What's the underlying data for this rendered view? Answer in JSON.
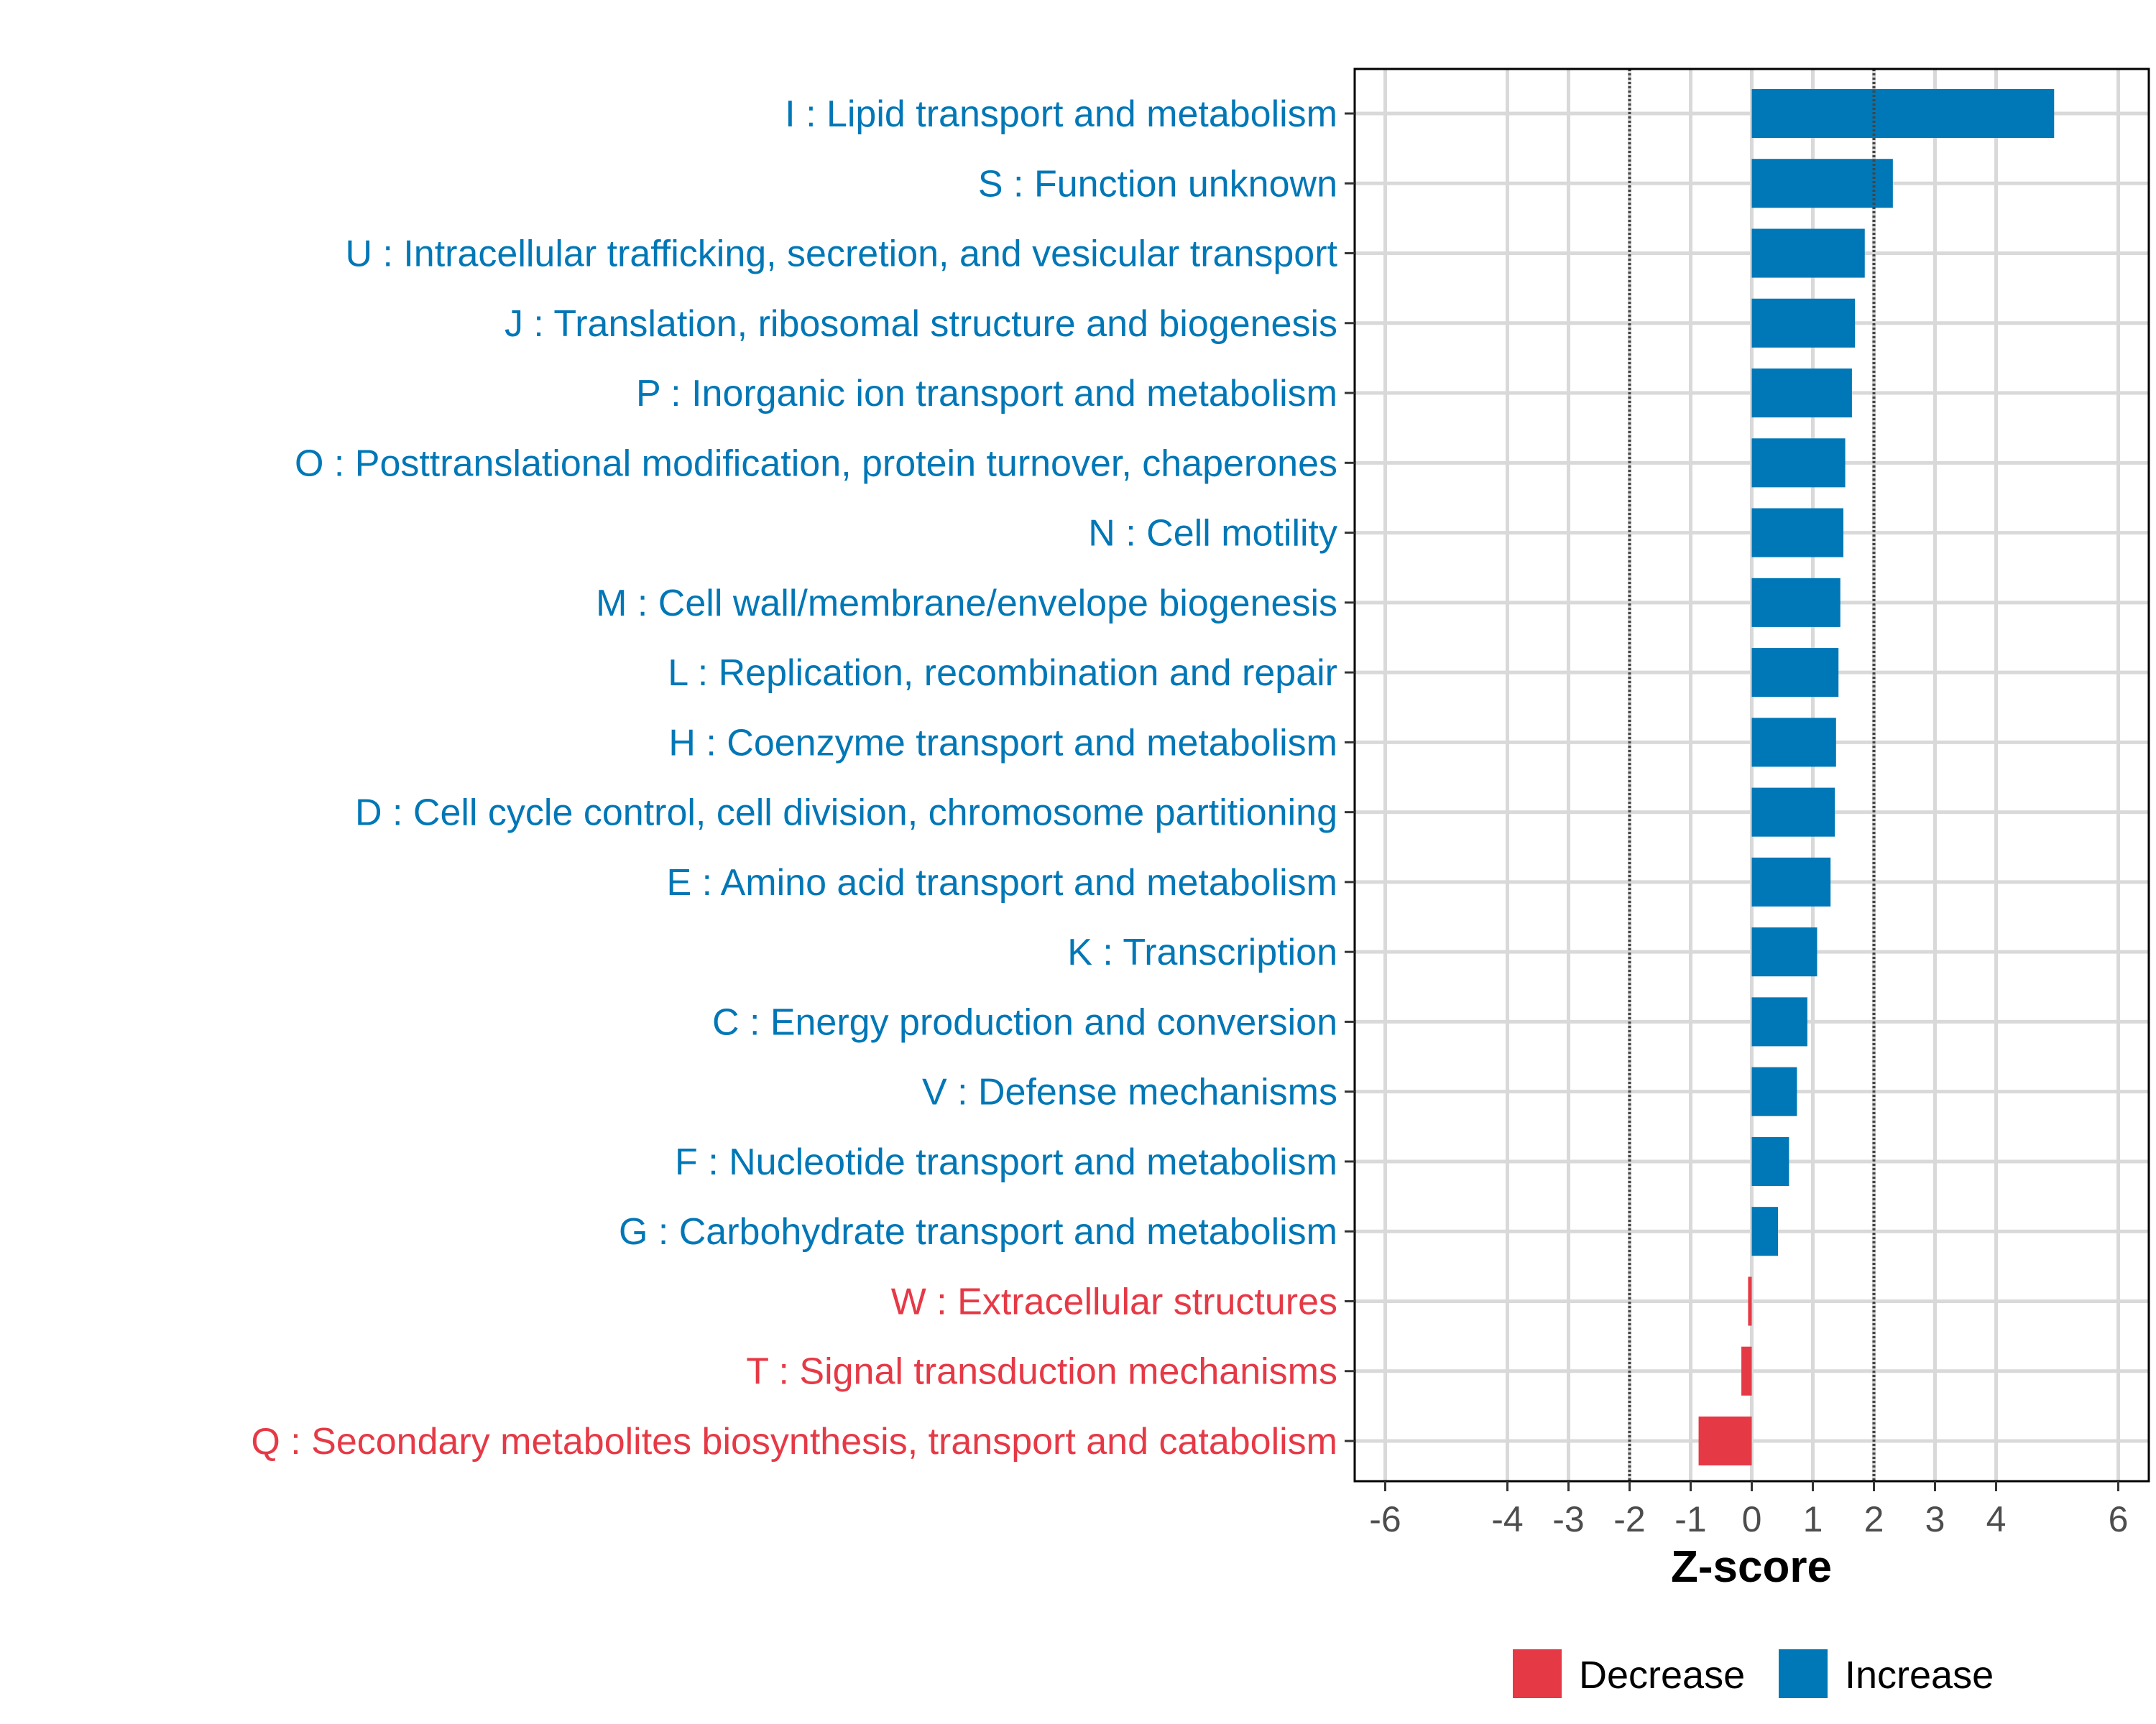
{
  "chart_data": {
    "type": "bar",
    "orientation": "horizontal",
    "xlabel": "Z-score",
    "xlim": [
      -6.5,
      6.5
    ],
    "xticks": [
      -6,
      -4,
      -3,
      -2,
      -1,
      0,
      1,
      2,
      3,
      4,
      6
    ],
    "reference_lines": [
      -2,
      2
    ],
    "grid": true,
    "legend_position": "bottom",
    "legend": [
      {
        "name": "Decrease",
        "color": "#E63946"
      },
      {
        "name": "Increase",
        "color": "#0077B6"
      }
    ],
    "categories": [
      "I : Lipid transport and metabolism",
      "S : Function unknown",
      "U : Intracellular trafficking, secretion, and vesicular transport",
      "J : Translation, ribosomal structure and biogenesis",
      "P : Inorganic ion transport and metabolism",
      "O : Posttranslational modification, protein turnover, chaperones",
      "N : Cell motility",
      "M : Cell wall/membrane/envelope biogenesis",
      "L : Replication, recombination and repair",
      "H : Coenzyme transport and metabolism",
      "D : Cell cycle control, cell division, chromosome partitioning",
      "E : Amino acid transport and metabolism",
      "K : Transcription",
      "C : Energy production and conversion",
      "V : Defense mechanisms",
      "F : Nucleotide transport and metabolism",
      "G : Carbohydrate transport and metabolism",
      "W : Extracellular structures",
      "T : Signal transduction mechanisms",
      "Q : Secondary metabolites biosynthesis, transport and catabolism"
    ],
    "values": [
      4.95,
      2.31,
      1.85,
      1.69,
      1.64,
      1.53,
      1.5,
      1.45,
      1.42,
      1.38,
      1.36,
      1.29,
      1.07,
      0.91,
      0.74,
      0.61,
      0.43,
      -0.06,
      -0.17,
      -0.87
    ]
  }
}
